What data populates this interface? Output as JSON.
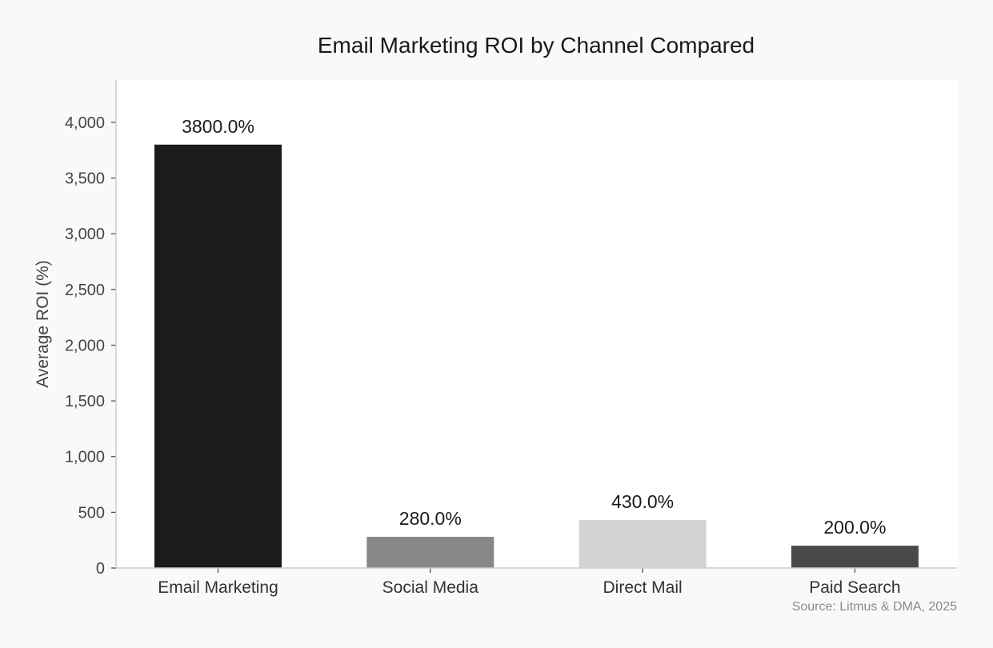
{
  "chart_data": {
    "type": "bar",
    "title": "Email Marketing ROI by Channel Compared",
    "xlabel": "",
    "ylabel": "Average ROI (%)",
    "categories": [
      "Email Marketing",
      "Social Media",
      "Direct Mail",
      "Paid Search"
    ],
    "values": [
      3800,
      280,
      430,
      200
    ],
    "value_labels": [
      "3800.0%",
      "280.0%",
      "430.0%",
      "200.0%"
    ],
    "bar_colors": [
      "#1b1b1b",
      "#888888",
      "#d3d3d3",
      "#4a4a4a"
    ],
    "ylim": [
      0,
      4380
    ],
    "yticks": [
      0,
      500,
      1000,
      1500,
      2000,
      2500,
      3000,
      3500,
      4000
    ],
    "ytick_labels": [
      "0",
      "500",
      "1,000",
      "1,500",
      "2,000",
      "2,500",
      "3,000",
      "3,500",
      "4,000"
    ],
    "grid": false,
    "source": "Source: Litmus & DMA, 2025"
  }
}
